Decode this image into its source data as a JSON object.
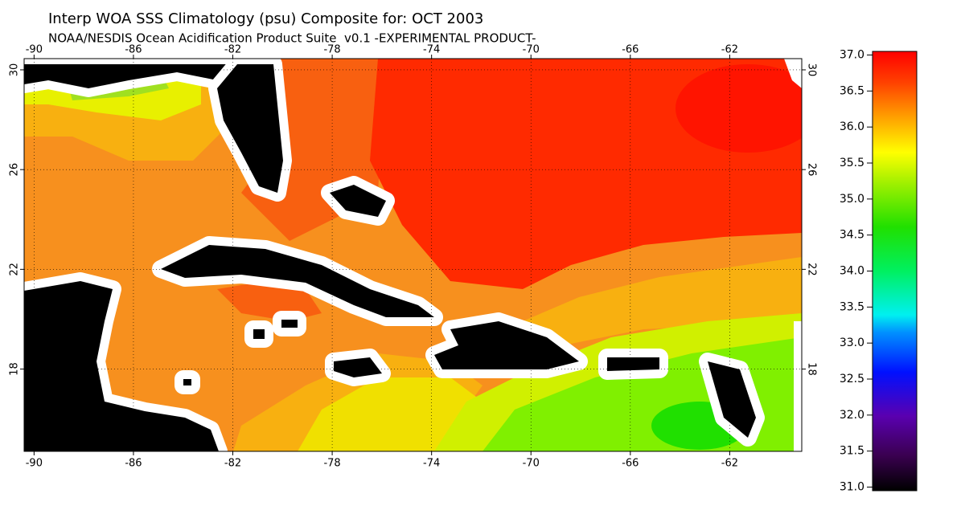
{
  "map": {
    "title": "Interp WOA SSS Climatology (psu) Composite for: OCT 2003",
    "subtitle": "NOAA/NESDIS Ocean Acidification Product Suite  v0.1 -EXPERIMENTAL PRODUCT-",
    "lonlim": [
      -90.4,
      -59.1
    ],
    "latlim": [
      14.7,
      30.45
    ],
    "lon_ticks": [
      -90,
      -86,
      -82,
      -78,
      -74,
      -70,
      -66,
      -62
    ],
    "lat_ticks": [
      18,
      22,
      26,
      30
    ],
    "colorbar": {
      "lim": [
        30.95,
        37.05
      ],
      "ticks": [
        {
          "value": 31,
          "label": "31.0"
        },
        {
          "value": 31.5,
          "label": "31.5"
        },
        {
          "value": 32,
          "label": "32.0"
        },
        {
          "value": 32.5,
          "label": "32.5"
        },
        {
          "value": 33,
          "label": "33.0"
        },
        {
          "value": 33.5,
          "label": "33.5"
        },
        {
          "value": 34,
          "label": "34.0"
        },
        {
          "value": 34.5,
          "label": "34.5"
        },
        {
          "value": 35,
          "label": "35.0"
        },
        {
          "value": 35.5,
          "label": "35.5"
        },
        {
          "value": 36,
          "label": "36.0"
        },
        {
          "value": 36.5,
          "label": "36.5"
        },
        {
          "value": 37,
          "label": "37.0"
        }
      ]
    }
  }
}
